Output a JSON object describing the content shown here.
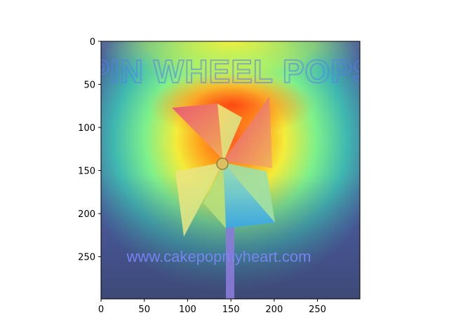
{
  "chart_data": {
    "type": "heatmap",
    "title": "",
    "xlabel": "",
    "ylabel": "",
    "xlim": [
      0,
      299
    ],
    "ylim": [
      299,
      0
    ],
    "x_ticks": [
      0,
      50,
      100,
      150,
      200,
      250
    ],
    "y_ticks": [
      0,
      50,
      100,
      150,
      200,
      250
    ],
    "image_text": {
      "overlay_title": "PIN WHEEL POPS",
      "watermark_url": "www.cakepopmyheart.com"
    },
    "overlay_colormap": "jet",
    "subject": "pinwheel-lollipop"
  }
}
